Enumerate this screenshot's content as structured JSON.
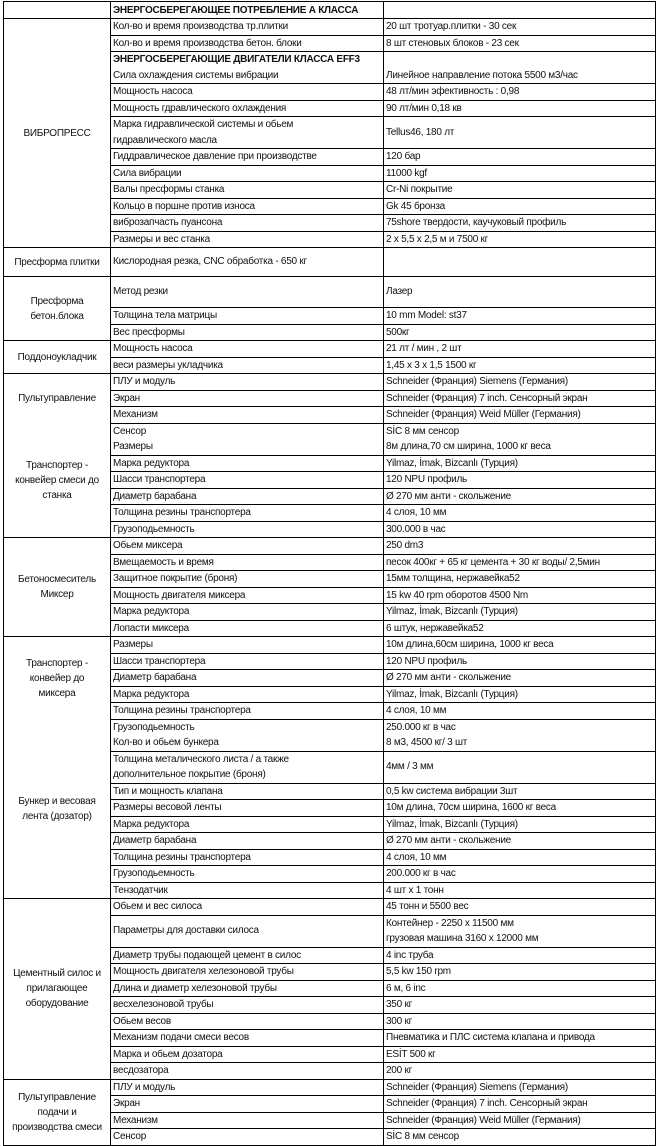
{
  "header": {
    "title": "ЭНЕРГОСБЕРЕГАЮЩЕЕ ПОТРЕБЛЕНИЕ А КЛАССА"
  },
  "sections": [
    {
      "labels": [
        {
          "lines": [
            "ВИБРОПРЕСС"
          ],
          "span": 12
        }
      ],
      "rows": [
        {
          "param": [
            "Кол-во и время производства тр.плитки"
          ],
          "value": [
            "20 шт тротуар.плитки - 30 сек"
          ]
        },
        {
          "param": [
            "Кол-во и время производства бетон. блоки"
          ],
          "value": [
            "8 шт стеновых блоков - 23 сек"
          ]
        },
        {
          "param": [
            "ЭНЕРГОСБЕРЕГАЮЩИЕ ДВИГАТЕЛИ КЛАССА EFF3",
            "Сила охлаждения системы вибрации"
          ],
          "value": [
            "",
            "Линейное направление потока 5500 м3/час"
          ]
        },
        {
          "param": [
            "Мощность насоса"
          ],
          "value": [
            "48 лт/мин  эфективность : 0,98"
          ]
        },
        {
          "param": [
            "Мощность гдравлического охлаждения"
          ],
          "value": [
            "90 лт/мин 0,18 кв"
          ]
        },
        {
          "param": [
            "Марка гидравлической системы и обьем",
            "гидравлического масла"
          ],
          "value": [
            "Tellus46, 180 лт"
          ]
        },
        {
          "param": [
            "Гиддравлическое давление при производстве"
          ],
          "value": [
            "120 бар"
          ]
        },
        {
          "param": [
            "Сила вибрации"
          ],
          "value": [
            "11000 kgf"
          ]
        },
        {
          "param": [
            "Валы пресформы станка"
          ],
          "value": [
            "Cr-Ni покрытие"
          ]
        },
        {
          "param": [
            "Кольцо в поршне против износа"
          ],
          "value": [
            "Gk 45 бронза"
          ]
        },
        {
          "param": [
            "виброзапчасть пуансона"
          ],
          "value": [
            "75shore твердости, каучуковый профиль"
          ]
        },
        {
          "param": [
            "Размеры и вес станка"
          ],
          "value": [
            "2 x 5,5 x 2,5 м и 7500 кг"
          ]
        }
      ]
    },
    {
      "labels": [
        {
          "lines": [
            "Пресформа плитки"
          ],
          "span": 1
        }
      ],
      "rows": [
        {
          "param": [
            "Кислородная резка, CNC обработка - 650 кг"
          ],
          "value": [
            ""
          ]
        }
      ]
    },
    {
      "labels": [
        {
          "lines": [
            "Пресформа",
            "бетон.блока"
          ],
          "span": 3
        }
      ],
      "rows": [
        {
          "param": [
            "Метод резки"
          ],
          "value": [
            "Лазер"
          ]
        },
        {
          "param": [
            "Толщина тела матрицы"
          ],
          "value": [
            "10 mm Model:  st37"
          ]
        },
        {
          "param": [
            "Вес пресформы"
          ],
          "value": [
            "500кг"
          ]
        }
      ]
    },
    {
      "labels": [
        {
          "lines": [
            "Поддоноукладчик"
          ],
          "span": 2
        }
      ],
      "rows": [
        {
          "param": [
            "Мощность насоса"
          ],
          "value": [
            "21 лт / мин , 2 шт"
          ]
        },
        {
          "param": [
            "веси размеры укладчика"
          ],
          "value": [
            "1,45 x 3 x 1,5       1500 кг"
          ]
        }
      ]
    },
    {
      "labels": [
        {
          "lines": [
            "Пультуправление"
          ],
          "span": 3
        },
        {
          "lines": [
            "Транспортер -",
            "конвейер смеси до",
            "станка"
          ],
          "span": 6
        }
      ],
      "rows": [
        {
          "param": [
            "ПЛУ и модуль"
          ],
          "value": [
            "Schneider (Франция) Siemens (Германия)"
          ]
        },
        {
          "param": [
            "Экран"
          ],
          "value": [
            "Schneider (Франция) 7 inch. Сенсорный экран"
          ]
        },
        {
          "param": [
            "Механизм"
          ],
          "value": [
            "Schneider  (Франция) Weid Müller (Германия)"
          ]
        },
        {
          "param": [
            "Сенсор",
            "Размеры"
          ],
          "value": [
            "SİC 8 мм сенсор",
            "8м длина,70 см ширина, 1000 кг веса"
          ]
        },
        {
          "param": [
            "Марка редуктора"
          ],
          "value": [
            "Yilmaz, İmak, Bizcanlı (Турция)"
          ]
        },
        {
          "param": [
            "Шасси транспортера"
          ],
          "value": [
            "120 NPU профиль"
          ]
        },
        {
          "param": [
            "Диаметр барабана"
          ],
          "value": [
            "Ø 270  мм анти - скольжение"
          ]
        },
        {
          "param": [
            "Толщина резины транспортера"
          ],
          "value": [
            "4 слоя, 10 мм"
          ]
        },
        {
          "param": [
            "Грузоподьемность"
          ],
          "value": [
            "300.000 в час"
          ]
        }
      ]
    },
    {
      "labels": [
        {
          "lines": [
            "Бетоносмеситель",
            "Миксер"
          ],
          "span": 6
        }
      ],
      "rows": [
        {
          "param": [
            "Обьем миксера"
          ],
          "value": [
            "250  dm3"
          ]
        },
        {
          "param": [
            "Вмещаемость и время"
          ],
          "value": [
            "песок 400кг + 65 кг цемента + 30 кг воды/ 2,5мин"
          ]
        },
        {
          "param": [
            "Защитное покрытие (броня)"
          ],
          "value": [
            "15мм толщина, нержавейка52"
          ]
        },
        {
          "param": [
            "Мощность двигателя миксера"
          ],
          "value": [
            "15 kw 40 rpm оборотов 4500 Nm"
          ]
        },
        {
          "param": [
            "Марка редуктора"
          ],
          "value": [
            "Yilmaz, İmak, Bizcanlı (Турция)"
          ]
        },
        {
          "param": [
            "Лопасти миксера"
          ],
          "value": [
            "6 штук, нержавейка52"
          ]
        }
      ]
    },
    {
      "labels": [
        {
          "lines": [
            "Транспортер -",
            "конвейер до",
            "миксера"
          ],
          "span": 5
        },
        {
          "lines": [
            "Бункер и весовая",
            "лента (дозатор)"
          ],
          "span": 9
        }
      ],
      "rows": [
        {
          "param": [
            "Размеры"
          ],
          "value": [
            "10м длина,60см ширина, 1000 кг веса"
          ]
        },
        {
          "param": [
            "Шасси транспортера"
          ],
          "value": [
            "120 NPU профиль"
          ]
        },
        {
          "param": [
            "Диаметр барабана"
          ],
          "value": [
            "Ø 270  мм анти - скольжение"
          ]
        },
        {
          "param": [
            "Марка редуктора"
          ],
          "value": [
            "Yilmaz, İmak, Bizcanlı (Турция)"
          ]
        },
        {
          "param": [
            "Толщина резины транспортера"
          ],
          "value": [
            "4 слоя, 10 мм"
          ]
        },
        {
          "param": [
            "Грузоподьемность",
            "Кол-во и обьем бункера"
          ],
          "value": [
            "250.000 кг в час",
            "8 м3,  4500 кг/ 3 шт"
          ]
        },
        {
          "param": [
            "Толщина металического листа / а также",
            "дополнительное покрытие (броня)"
          ],
          "value": [
            "4мм / 3 мм"
          ]
        },
        {
          "param": [
            "Тип и мощность клапана"
          ],
          "value": [
            "0,5 kw система вибрации 3шт"
          ]
        },
        {
          "param": [
            "Размеры весовой ленты"
          ],
          "value": [
            "10м длина, 70см ширина, 1600 кг веса"
          ]
        },
        {
          "param": [
            "Марка редуктора"
          ],
          "value": [
            "Yilmaz, İmak, Bizcanlı (Турция)"
          ]
        },
        {
          "param": [
            "Диаметр барабана"
          ],
          "value": [
            "Ø 270  мм анти - скольжение"
          ]
        },
        {
          "param": [
            "Толщина резины транспортера"
          ],
          "value": [
            "4 слоя, 10 мм"
          ]
        },
        {
          "param": [
            "Грузоподьемность"
          ],
          "value": [
            "200.000  кг  в час"
          ]
        },
        {
          "param": [
            "Тензодатчик"
          ],
          "value": [
            "4 шт x 1 тонн"
          ]
        }
      ]
    },
    {
      "labels": [
        {
          "lines": [
            "Цементный силос и",
            "прилагающее",
            "оборудование"
          ],
          "span": 10
        }
      ],
      "rows": [
        {
          "param": [
            "Обьем и вес силоса"
          ],
          "value": [
            "45 тонн и 5500 вес"
          ]
        },
        {
          "param": [
            "Параметры для доставки силоса"
          ],
          "value": [
            "Контейнер - 2250 x 11500 мм",
            "грузовая  машина 3160 x 12000 мм"
          ]
        },
        {
          "param": [
            "Диаметр трубы подающей цемент в силос"
          ],
          "value": [
            "4 inc труба"
          ]
        },
        {
          "param": [
            "Мощность двигателя  хелезоновой трубы"
          ],
          "value": [
            "5,5 kw 150 rpm"
          ]
        },
        {
          "param": [
            "Длина и диаметр хелезоновой трубы"
          ],
          "value": [
            "6 м, 6 inc"
          ]
        },
        {
          "param": [
            "весхелезоновой трубы"
          ],
          "value": [
            "350 кг"
          ]
        },
        {
          "param": [
            "Обьем весов"
          ],
          "value": [
            "300 кг"
          ]
        },
        {
          "param": [
            "Механизм подачи смеси весов"
          ],
          "value": [
            "Пневматика и ПЛС система клапана и привода"
          ]
        },
        {
          "param": [
            "Марка и обьем дозатора"
          ],
          "value": [
            "ESİT 500 кг"
          ]
        },
        {
          "param": [
            "весдозатора"
          ],
          "value": [
            "200 кг"
          ]
        }
      ]
    },
    {
      "labels": [
        {
          "lines": [
            "Пультуправление",
            "подачи и",
            "производства смеси"
          ],
          "span": 4
        }
      ],
      "rows": [
        {
          "param": [
            "ПЛУ и модуль"
          ],
          "value": [
            "Schneider (Франция) Siemens (Германия)"
          ]
        },
        {
          "param": [
            "Экран"
          ],
          "value": [
            "Schneider (Франция) 7 inch. Сенсорный экран"
          ]
        },
        {
          "param": [
            "Механизм"
          ],
          "value": [
            "Schneider  (Франция) Weid Müller (Германия)"
          ]
        },
        {
          "param": [
            "Сенсор"
          ],
          "value": [
            "SİC 8 мм сенсор"
          ]
        }
      ]
    }
  ]
}
